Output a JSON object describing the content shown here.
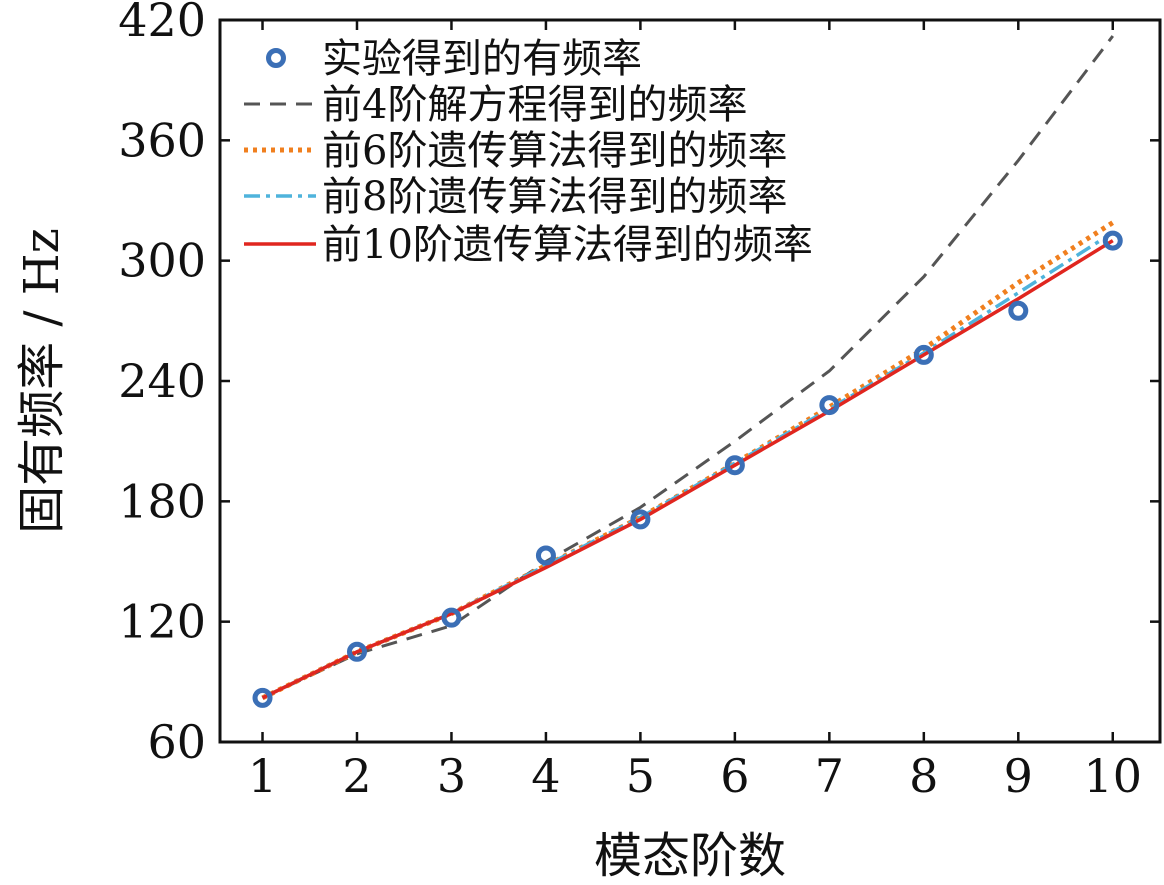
{
  "chart_data": {
    "type": "line",
    "xlabel": "模态阶数",
    "ylabel": "固有频率 / Hz",
    "xlim": [
      0.55,
      10.5
    ],
    "ylim": [
      60,
      420
    ],
    "xticks": [
      1,
      2,
      3,
      4,
      5,
      6,
      7,
      8,
      9,
      10
    ],
    "yticks": [
      60,
      120,
      180,
      240,
      300,
      360,
      420
    ],
    "grid": false,
    "legend_position": "top-left",
    "x": [
      1,
      2,
      3,
      4,
      5,
      6,
      7,
      8,
      9,
      10
    ],
    "series": [
      {
        "name": "实验得到的有频率",
        "style": "markers",
        "color": "#3b6fb6",
        "values": [
          82,
          105,
          122,
          153,
          171,
          198,
          228,
          253,
          275,
          310
        ]
      },
      {
        "name": "前4阶解方程得到的频率",
        "style": "dashed",
        "color": "#555555",
        "values": [
          82,
          104,
          118,
          150,
          177,
          210,
          245,
          292,
          350,
          412
        ]
      },
      {
        "name": "前6阶遗传算法得到的频率",
        "style": "dotted",
        "color": "#f07f1e",
        "values": [
          82,
          105,
          124,
          148,
          172,
          199,
          227,
          256,
          289,
          319
        ]
      },
      {
        "name": "前8阶遗传算法得到的频率",
        "style": "dashdot",
        "color": "#4fb3dc",
        "values": [
          82,
          105,
          124,
          148,
          172,
          199,
          226,
          254,
          284,
          314
        ]
      },
      {
        "name": "前10阶遗传算法得到的频率",
        "style": "solid",
        "color": "#e0261f",
        "values": [
          82,
          105,
          124,
          147,
          171,
          198,
          225,
          253,
          281,
          310
        ]
      }
    ]
  }
}
